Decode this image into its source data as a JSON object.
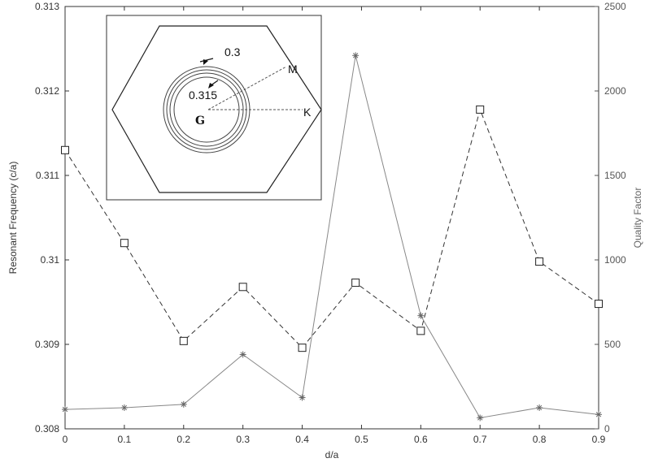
{
  "chart_data": {
    "type": "line",
    "title": "",
    "xlabel": "d/a",
    "ylabel": "Resonant Frequency (c/a)",
    "y2label": "Quality Factor",
    "xlim": [
      0,
      0.9
    ],
    "ylim": [
      0.308,
      0.313
    ],
    "y2lim": [
      0,
      2500
    ],
    "x_ticks": [
      "0",
      "0.1",
      "0.2",
      "0.3",
      "0.4",
      "0.5",
      "0.6",
      "0.7",
      "0.8",
      "0.9"
    ],
    "y_ticks": [
      "0.308",
      "0.309",
      "0.31",
      "0.311",
      "0.312",
      "0.313"
    ],
    "y2_ticks": [
      "0",
      "500",
      "1000",
      "1500",
      "2000",
      "2500"
    ],
    "grid": false,
    "series": [
      {
        "axis": "left",
        "marker": "square",
        "linestyle": "dashed",
        "color": "#333333",
        "x": [
          0,
          0.1,
          0.2,
          0.3,
          0.4,
          0.49,
          0.6,
          0.7,
          0.8,
          0.9
        ],
        "values": [
          0.3113,
          0.3102,
          0.30904,
          0.30968,
          0.30896,
          0.30973,
          0.30916,
          0.31178,
          0.30998,
          0.30948
        ]
      },
      {
        "axis": "right",
        "marker": "asterisk",
        "linestyle": "solid",
        "color": "#888888",
        "x": [
          0,
          0.1,
          0.2,
          0.3,
          0.4,
          0.49,
          0.6,
          0.7,
          0.8,
          0.9
        ],
        "values": [
          115,
          125,
          145,
          440,
          185,
          2210,
          670,
          65,
          125,
          85
        ]
      }
    ],
    "inset": {
      "labels": {
        "outer_contour": "0.3",
        "inner_contour": "0.315",
        "point_m": "M",
        "point_k": "K",
        "point_g": "G"
      }
    }
  }
}
